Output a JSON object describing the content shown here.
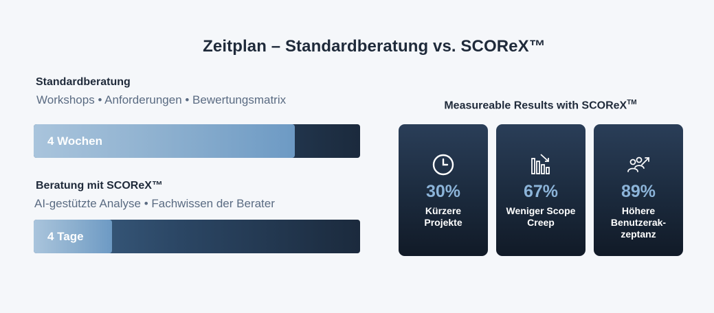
{
  "title": "Zeitplan – Standardberatung vs. SCOReX™",
  "standard": {
    "heading": "Standardberatung",
    "items": "Workshops  • Anforderungen • Bewertungsmatrix",
    "duration": "4 Wochen",
    "fill_fraction": 0.8
  },
  "scorex": {
    "heading": "Beratung mit SCOReX™",
    "items": "AI-gestützte Analyse • Fachwissen der Berater",
    "duration": "4 Tage",
    "fill_fraction": 0.24
  },
  "results": {
    "title": "Measureable Results with SCOReX",
    "title_tm": "TM",
    "cards": [
      {
        "icon": "clock-icon",
        "value": "30%",
        "label": "Kürzere Projekte"
      },
      {
        "icon": "bar-chart-icon",
        "value": "67%",
        "label": "Weniger Scope Creep"
      },
      {
        "icon": "users-icon",
        "value": "89%",
        "label": "Höhere Benutzerak-zeptanz"
      }
    ]
  },
  "colors": {
    "accent": "#8cb4d9",
    "card_bg": "#1b2a3d",
    "bar_dark": "#1b2a3d",
    "bar_light": "#a9c4dc"
  }
}
